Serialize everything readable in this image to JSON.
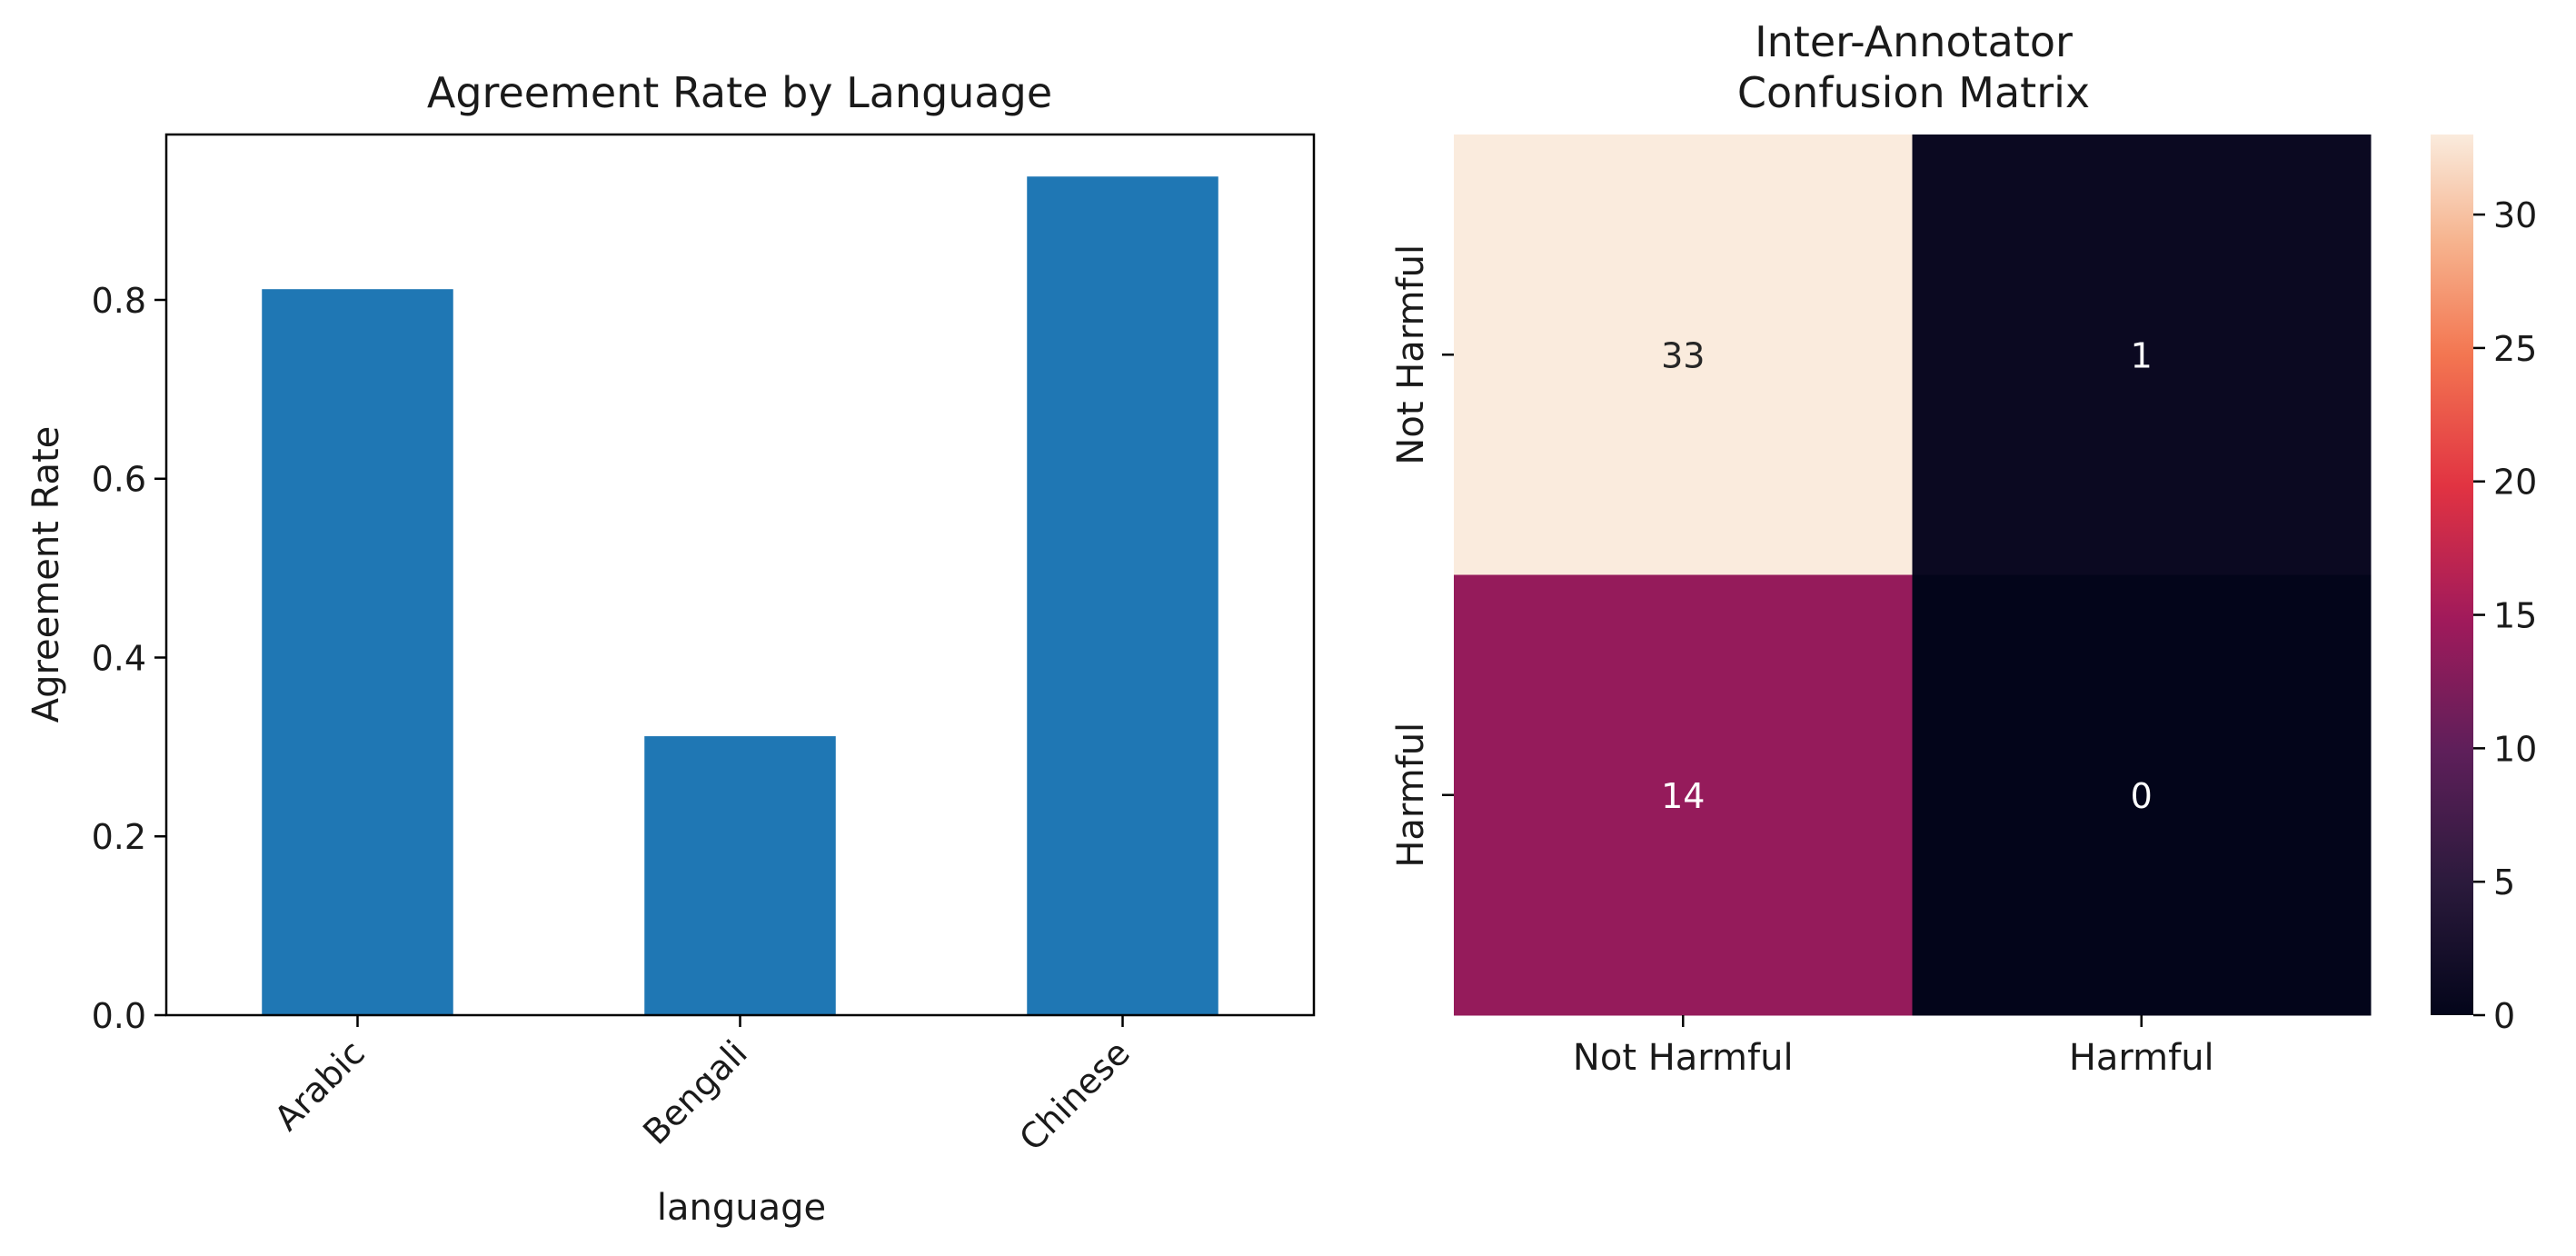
{
  "chart_data": [
    {
      "type": "bar",
      "title": "Agreement Rate by Language",
      "xlabel": "language",
      "ylabel": "Agreement Rate",
      "categories": [
        "Arabic",
        "Bengali",
        "Chinese"
      ],
      "values": [
        0.812,
        0.312,
        0.938
      ],
      "ylim": [
        0,
        0.985
      ],
      "yticks": [
        "0.0",
        "0.2",
        "0.4",
        "0.6",
        "0.8"
      ],
      "ytick_values": [
        0,
        0.2,
        0.4,
        0.6,
        0.8
      ],
      "bar_color": "#1f77b4",
      "grid": false
    },
    {
      "type": "heatmap",
      "title": "Inter-Annotator\nConfusion Matrix",
      "row_labels": [
        "Not Harmful",
        "Harmful"
      ],
      "col_labels": [
        "Not Harmful",
        "Harmful"
      ],
      "values": [
        [
          33,
          1
        ],
        [
          14,
          0
        ]
      ],
      "colormap": "rocket",
      "colorbar_range": [
        0,
        33
      ],
      "colorbar_ticks": [
        "0",
        "5",
        "10",
        "15",
        "20",
        "25",
        "30"
      ],
      "colorbar_tick_values": [
        0,
        5,
        10,
        15,
        20,
        25,
        30
      ]
    }
  ]
}
